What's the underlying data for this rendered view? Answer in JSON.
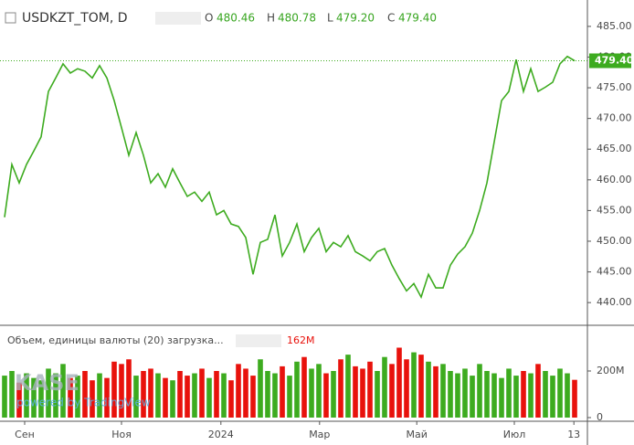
{
  "chart_data": [
    {
      "type": "line",
      "title": "USDKZT_TOM, D",
      "ohlc": {
        "o_label": "O",
        "o": "480.46",
        "h_label": "H",
        "h": "480.78",
        "l_label": "L",
        "l": "479.20",
        "c_label": "C"
      },
      "last_price": {
        "value": 479.4,
        "label": "479.40"
      },
      "series": [
        {
          "name": "USDKZT_TOM",
          "color": "#3dab1f",
          "values": [
            453.9,
            462.5,
            459.5,
            462.5,
            464.7,
            467,
            474.4,
            476.6,
            478.9,
            477.4,
            478.1,
            477.7,
            476.6,
            478.6,
            476.6,
            472.9,
            468.5,
            464,
            467.7,
            464,
            459.5,
            461,
            458.8,
            461.8,
            459.5,
            457.3,
            458,
            456.5,
            458,
            454.3,
            455,
            452.8,
            452.4,
            450.6,
            444.6,
            449.8,
            450.3,
            454.3,
            447.6,
            449.8,
            452.8,
            448.3,
            450.6,
            452.1,
            448.3,
            449.8,
            449.1,
            450.9,
            448.3,
            447.6,
            446.8,
            448.3,
            448.8,
            446.1,
            443.9,
            441.9,
            443.1,
            440.9,
            444.6,
            442.4,
            442.4,
            446.1,
            447.9,
            449.1,
            451.3,
            455,
            459.5,
            466.2,
            472.9,
            474.4,
            479.6,
            474.4,
            478.1,
            474.4,
            475.1,
            475.9,
            478.9,
            480.1,
            479.4
          ]
        }
      ],
      "xlim": [
        -0.625,
        79.75
      ],
      "xticks": [
        {
          "value": 2.75,
          "label": "Сен"
        },
        {
          "value": 16,
          "label": "Ноя"
        },
        {
          "value": 29.6,
          "label": "2024"
        },
        {
          "value": 43.1,
          "label": "Мар"
        },
        {
          "value": 56.4,
          "label": "Май"
        },
        {
          "value": 69.75,
          "label": "Июл"
        },
        {
          "value": 77.9,
          "label": "13"
        }
      ],
      "ylim": [
        436.3,
        489.3
      ],
      "yticks": [
        {
          "value": 440,
          "label": "440.00"
        },
        {
          "value": 445,
          "label": "445.00"
        },
        {
          "value": 450,
          "label": "450.00"
        },
        {
          "value": 455,
          "label": "455.00"
        },
        {
          "value": 460,
          "label": "460.00"
        },
        {
          "value": 465,
          "label": "465.00"
        },
        {
          "value": 470,
          "label": "470.00"
        },
        {
          "value": 475,
          "label": "475.00"
        },
        {
          "value": 480,
          "label": "480.00"
        },
        {
          "value": 485,
          "label": "485.00"
        }
      ]
    },
    {
      "type": "bar",
      "title": "Объем, единицы валюты (20) загрузка...",
      "up_color": "#3dab1f",
      "down_color": "#e8120c",
      "last_value": 162,
      "last_value_label": "162M",
      "values": [
        180,
        200,
        150,
        190,
        170,
        160,
        210,
        190,
        230,
        170,
        180,
        200,
        160,
        190,
        170,
        240,
        230,
        250,
        180,
        200,
        210,
        190,
        170,
        160,
        200,
        180,
        190,
        210,
        170,
        200,
        190,
        160,
        230,
        210,
        180,
        250,
        200,
        190,
        220,
        180,
        240,
        260,
        210,
        230,
        190,
        200,
        250,
        270,
        220,
        210,
        240,
        200,
        260,
        230,
        300,
        250,
        280,
        270,
        240,
        220,
        230,
        200,
        190,
        210,
        180,
        230,
        200,
        190,
        170,
        210,
        180,
        200,
        190,
        230,
        200,
        180,
        210,
        190,
        162
      ],
      "ylim": [
        -15.7,
        396
      ],
      "yticks": [
        0,
        {
          "value": 200,
          "label": "200M"
        }
      ]
    },
    {
      "watermark": "KASE",
      "powered": "powered by TradingView"
    }
  ]
}
